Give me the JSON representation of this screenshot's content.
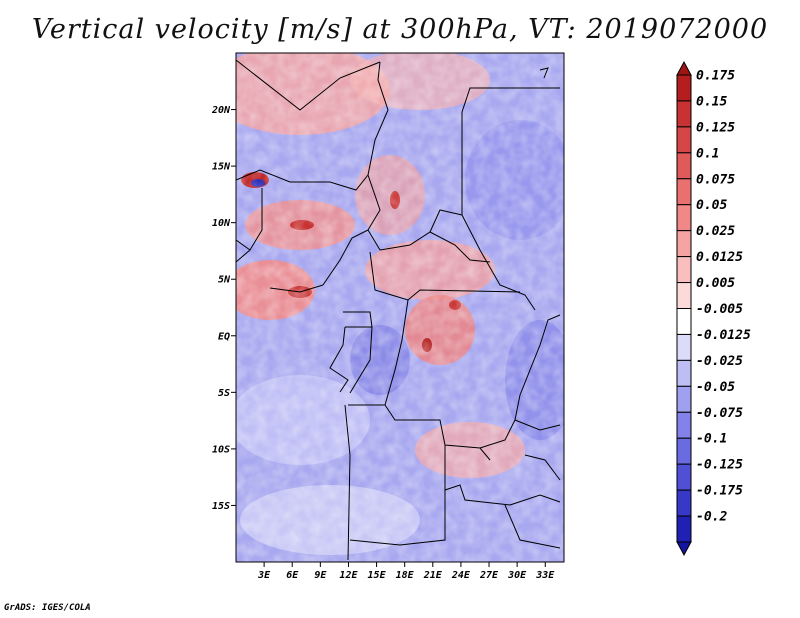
{
  "title": "Vertical velocity [m/s] at 300hPa, VT: 2019072000",
  "credit": "GrADS: IGES/COLA",
  "map": {
    "region": "Central Africa",
    "lon_range": [
      0,
      35
    ],
    "lat_range": [
      -20,
      25
    ],
    "lat_ticks": [
      {
        "value": 20,
        "label": "20N"
      },
      {
        "value": 15,
        "label": "15N"
      },
      {
        "value": 10,
        "label": "10N"
      },
      {
        "value": 5,
        "label": "5N"
      },
      {
        "value": 0,
        "label": "EQ"
      },
      {
        "value": -5,
        "label": "5S"
      },
      {
        "value": -10,
        "label": "10S"
      },
      {
        "value": -15,
        "label": "15S"
      }
    ],
    "lon_ticks": [
      {
        "value": 3,
        "label": "3E"
      },
      {
        "value": 6,
        "label": "6E"
      },
      {
        "value": 9,
        "label": "9E"
      },
      {
        "value": 12,
        "label": "12E"
      },
      {
        "value": 15,
        "label": "15E"
      },
      {
        "value": 18,
        "label": "18E"
      },
      {
        "value": 21,
        "label": "21E"
      },
      {
        "value": 24,
        "label": "24E"
      },
      {
        "value": 27,
        "label": "27E"
      },
      {
        "value": 30,
        "label": "30E"
      },
      {
        "value": 33,
        "label": "33E"
      }
    ]
  },
  "colorbar": {
    "levels": [
      {
        "label": "0.175",
        "color": "#b41e1e"
      },
      {
        "label": "0.15",
        "color": "#c83232"
      },
      {
        "label": "0.125",
        "color": "#d74646"
      },
      {
        "label": "0.1",
        "color": "#e15a5a"
      },
      {
        "label": "0.075",
        "color": "#ea7070"
      },
      {
        "label": "0.05",
        "color": "#f08888"
      },
      {
        "label": "0.025",
        "color": "#f5a3a3"
      },
      {
        "label": "0.0125",
        "color": "#fabebe"
      },
      {
        "label": "0.005",
        "color": "#fcdada"
      },
      {
        "label": "-0.005",
        "color": "#ffffff"
      },
      {
        "label": "-0.0125",
        "color": "#dcdcfa"
      },
      {
        "label": "-0.025",
        "color": "#bebef5"
      },
      {
        "label": "-0.05",
        "color": "#a0a0f0"
      },
      {
        "label": "-0.075",
        "color": "#8282ea"
      },
      {
        "label": "-0.1",
        "color": "#6a6ae1"
      },
      {
        "label": "-0.125",
        "color": "#5050d7"
      },
      {
        "label": "-0.175",
        "color": "#3838c8"
      },
      {
        "label": "-0.2",
        "color": "#2020b4"
      }
    ],
    "top_arrow_color": "#a01414",
    "bottom_arrow_color": "#1414a0"
  }
}
